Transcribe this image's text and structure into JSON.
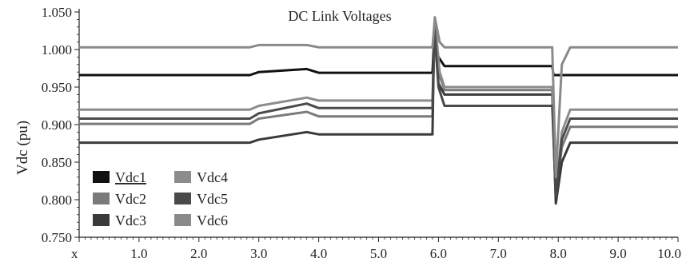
{
  "chart_data": {
    "type": "line",
    "title": "DC Link Voltages",
    "ylabel": "Vdc (pu)",
    "xlabel": "",
    "xlim": [
      0,
      10
    ],
    "ylim": [
      0.75,
      1.05
    ],
    "x_ticks": [
      "x",
      "1.0",
      "2.0",
      "3.0",
      "4.0",
      "5.0",
      "6.0",
      "7.0",
      "8.0",
      "9.0",
      "10.0"
    ],
    "y_ticks": [
      "0.750",
      "0.800",
      "0.850",
      "0.900",
      "0.950",
      "1.000",
      "1.050"
    ],
    "grid": false,
    "legend_position": "bottom-left",
    "series": [
      {
        "name": "Vdc1",
        "color": "#111111",
        "underline": true,
        "points": [
          [
            0,
            0.966
          ],
          [
            2.85,
            0.966
          ],
          [
            3.0,
            0.97
          ],
          [
            3.8,
            0.974
          ],
          [
            4.0,
            0.969
          ],
          [
            5.9,
            0.969
          ],
          [
            5.93,
            1.02
          ],
          [
            6.0,
            0.99
          ],
          [
            6.1,
            0.978
          ],
          [
            7.9,
            0.978
          ],
          [
            7.92,
            0.966
          ],
          [
            10,
            0.966
          ]
        ]
      },
      {
        "name": "Vdc2",
        "color": "#7a7a7a",
        "points": [
          [
            0,
            0.901
          ],
          [
            2.85,
            0.901
          ],
          [
            3.0,
            0.908
          ],
          [
            3.8,
            0.917
          ],
          [
            4.0,
            0.911
          ],
          [
            5.9,
            0.911
          ],
          [
            5.94,
            1.04
          ],
          [
            6.02,
            0.965
          ],
          [
            6.1,
            0.946
          ],
          [
            7.9,
            0.946
          ],
          [
            7.96,
            0.8
          ],
          [
            8.06,
            0.87
          ],
          [
            8.2,
            0.897
          ],
          [
            10,
            0.897
          ]
        ]
      },
      {
        "name": "Vdc3",
        "color": "#3a3a3a",
        "points": [
          [
            0,
            0.876
          ],
          [
            2.85,
            0.876
          ],
          [
            3.0,
            0.88
          ],
          [
            3.8,
            0.89
          ],
          [
            4.0,
            0.887
          ],
          [
            5.9,
            0.887
          ],
          [
            5.93,
            1.03
          ],
          [
            6.0,
            0.955
          ],
          [
            6.1,
            0.94
          ],
          [
            7.9,
            0.94
          ],
          [
            7.96,
            0.795
          ],
          [
            8.06,
            0.85
          ],
          [
            8.2,
            0.876
          ],
          [
            10,
            0.876
          ]
        ]
      },
      {
        "name": "Vdc4",
        "color": "#8c8c8c",
        "points": [
          [
            0,
            0.92
          ],
          [
            2.85,
            0.92
          ],
          [
            3.0,
            0.925
          ],
          [
            3.8,
            0.936
          ],
          [
            4.0,
            0.932
          ],
          [
            5.9,
            0.932
          ],
          [
            5.94,
            1.04
          ],
          [
            6.02,
            0.97
          ],
          [
            6.1,
            0.95
          ],
          [
            7.9,
            0.95
          ],
          [
            7.96,
            0.81
          ],
          [
            8.06,
            0.89
          ],
          [
            8.2,
            0.92
          ],
          [
            10,
            0.92
          ]
        ]
      },
      {
        "name": "Vdc5",
        "color": "#4a4a4a",
        "points": [
          [
            0,
            0.908
          ],
          [
            2.85,
            0.908
          ],
          [
            3.0,
            0.915
          ],
          [
            3.8,
            0.928
          ],
          [
            4.0,
            0.922
          ],
          [
            5.9,
            0.922
          ],
          [
            5.93,
            1.03
          ],
          [
            6.0,
            0.95
          ],
          [
            6.1,
            0.925
          ],
          [
            7.9,
            0.925
          ],
          [
            7.96,
            0.805
          ],
          [
            8.06,
            0.88
          ],
          [
            8.2,
            0.908
          ],
          [
            10,
            0.908
          ]
        ]
      },
      {
        "name": "Vdc6",
        "color": "#8a8a8a",
        "points": [
          [
            0,
            1.003
          ],
          [
            2.85,
            1.003
          ],
          [
            3.0,
            1.006
          ],
          [
            3.8,
            1.006
          ],
          [
            4.0,
            1.003
          ],
          [
            5.9,
            1.003
          ],
          [
            5.94,
            1.043
          ],
          [
            6.02,
            1.01
          ],
          [
            6.1,
            1.003
          ],
          [
            7.9,
            1.003
          ],
          [
            7.96,
            0.83
          ],
          [
            8.06,
            0.98
          ],
          [
            8.2,
            1.003
          ],
          [
            10,
            1.003
          ]
        ]
      }
    ]
  }
}
